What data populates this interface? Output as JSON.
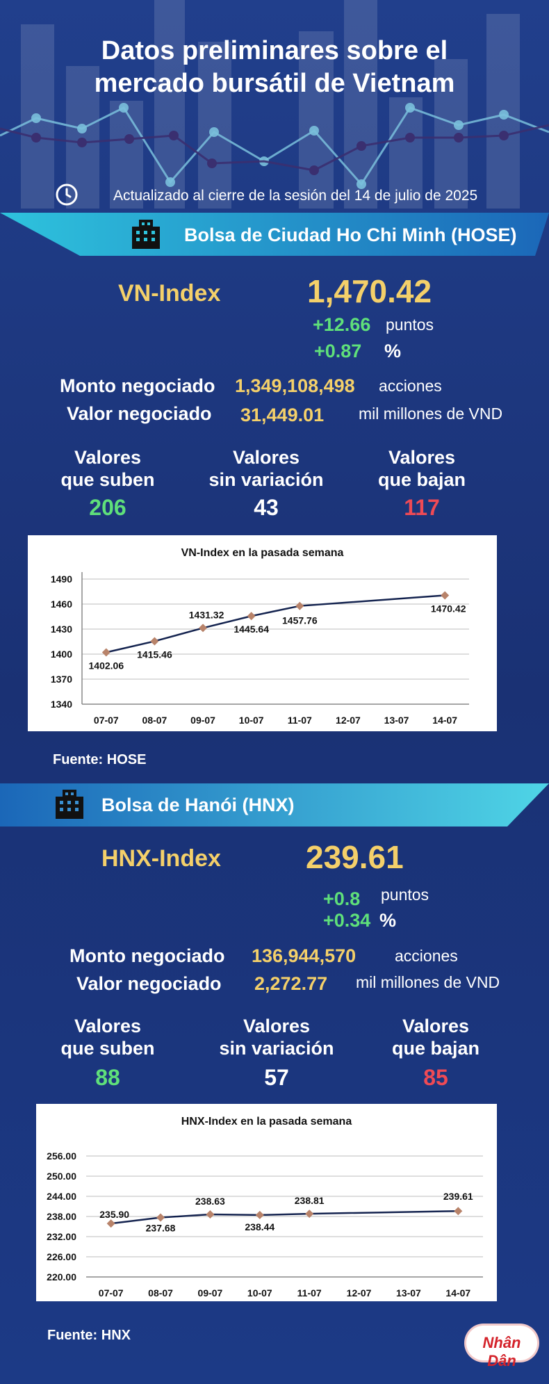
{
  "header": {
    "title_line1": "Datos preliminares sobre el",
    "title_line2": "mercado bursátil de Vietnam",
    "updated": "Actualizado al cierre de la sesión del 14 de julio de 2025"
  },
  "hose": {
    "banner": "Bolsa de Ciudad Ho Chi Minh (HOSE)",
    "index_name": "VN-Index",
    "index_value": "1,470.42",
    "change_points": "+12.66",
    "points_label": "puntos",
    "change_percent": "+0.87",
    "percent_label": "%",
    "volume_label": "Monto negociado",
    "volume_value": "1,349,108,498",
    "volume_unit": "acciones",
    "value_label": "Valor negociado",
    "value_value": "31,449.01",
    "value_unit": "mil millones de VND",
    "up_label1": "Valores",
    "up_label2": "que suben",
    "up_count": "206",
    "flat_label1": "Valores",
    "flat_label2": "sin variación",
    "flat_count": "43",
    "down_label1": "Valores",
    "down_label2": "que bajan",
    "down_count": "117",
    "source": "Fuente: HOSE"
  },
  "hnx": {
    "banner": "Bolsa de Hanói (HNX)",
    "index_name": "HNX-Index",
    "index_value": "239.61",
    "change_points": "+0.8",
    "points_label": "puntos",
    "change_percent": "+0.34",
    "percent_label": "%",
    "volume_label": "Monto negociado",
    "volume_value": "136,944,570",
    "volume_unit": "acciones",
    "value_label": "Valor negociado",
    "value_value": "2,272.77",
    "value_unit": "mil millones de VND",
    "up_label1": "Valores",
    "up_label2": "que suben",
    "up_count": "88",
    "flat_label1": "Valores",
    "flat_label2": "sin variación",
    "flat_count": "57",
    "down_label1": "Valores",
    "down_label2": "que bajan",
    "down_count": "85",
    "source": "Fuente:  HNX"
  },
  "logo": "Nhân Dân",
  "colors": {
    "up": "#5fe07a",
    "flat": "#ffffff",
    "down": "#ef4a55",
    "accent": "#f4d06a",
    "line": "#14234f",
    "marker": "#b8836a"
  },
  "chart_data": [
    {
      "type": "line",
      "title": "VN-Index en la pasada semana",
      "categories": [
        "07-07",
        "08-07",
        "09-07",
        "10-07",
        "11-07",
        "12-07",
        "13-07",
        "14-07"
      ],
      "series": [
        {
          "values": [
            1402.06,
            1415.46,
            1431.32,
            1445.64,
            1457.76,
            null,
            null,
            1470.42
          ],
          "labels": [
            "1402.06",
            "1415.46",
            "1431.32",
            "1445.64",
            "1457.76",
            "",
            "",
            "1470.42"
          ]
        }
      ],
      "ylim": [
        1340,
        1490
      ],
      "yticks": [
        "1340",
        "1370",
        "1400",
        "1430",
        "1460",
        "1490"
      ],
      "grid": true
    },
    {
      "type": "line",
      "title": "HNX-Index en la pasada semana",
      "categories": [
        "07-07",
        "08-07",
        "09-07",
        "10-07",
        "11-07",
        "12-07",
        "13-07",
        "14-07"
      ],
      "series": [
        {
          "values": [
            235.9,
            237.68,
            238.63,
            238.44,
            238.81,
            null,
            null,
            239.61
          ],
          "labels": [
            "235.90",
            "237.68",
            "238.63",
            "238.44",
            "238.81",
            "",
            "",
            "239.61"
          ]
        }
      ],
      "ylim": [
        220,
        256
      ],
      "yticks": [
        "220.00",
        "226.00",
        "232.00",
        "238.00",
        "244.00",
        "250.00",
        "256.00"
      ],
      "grid": true
    }
  ]
}
